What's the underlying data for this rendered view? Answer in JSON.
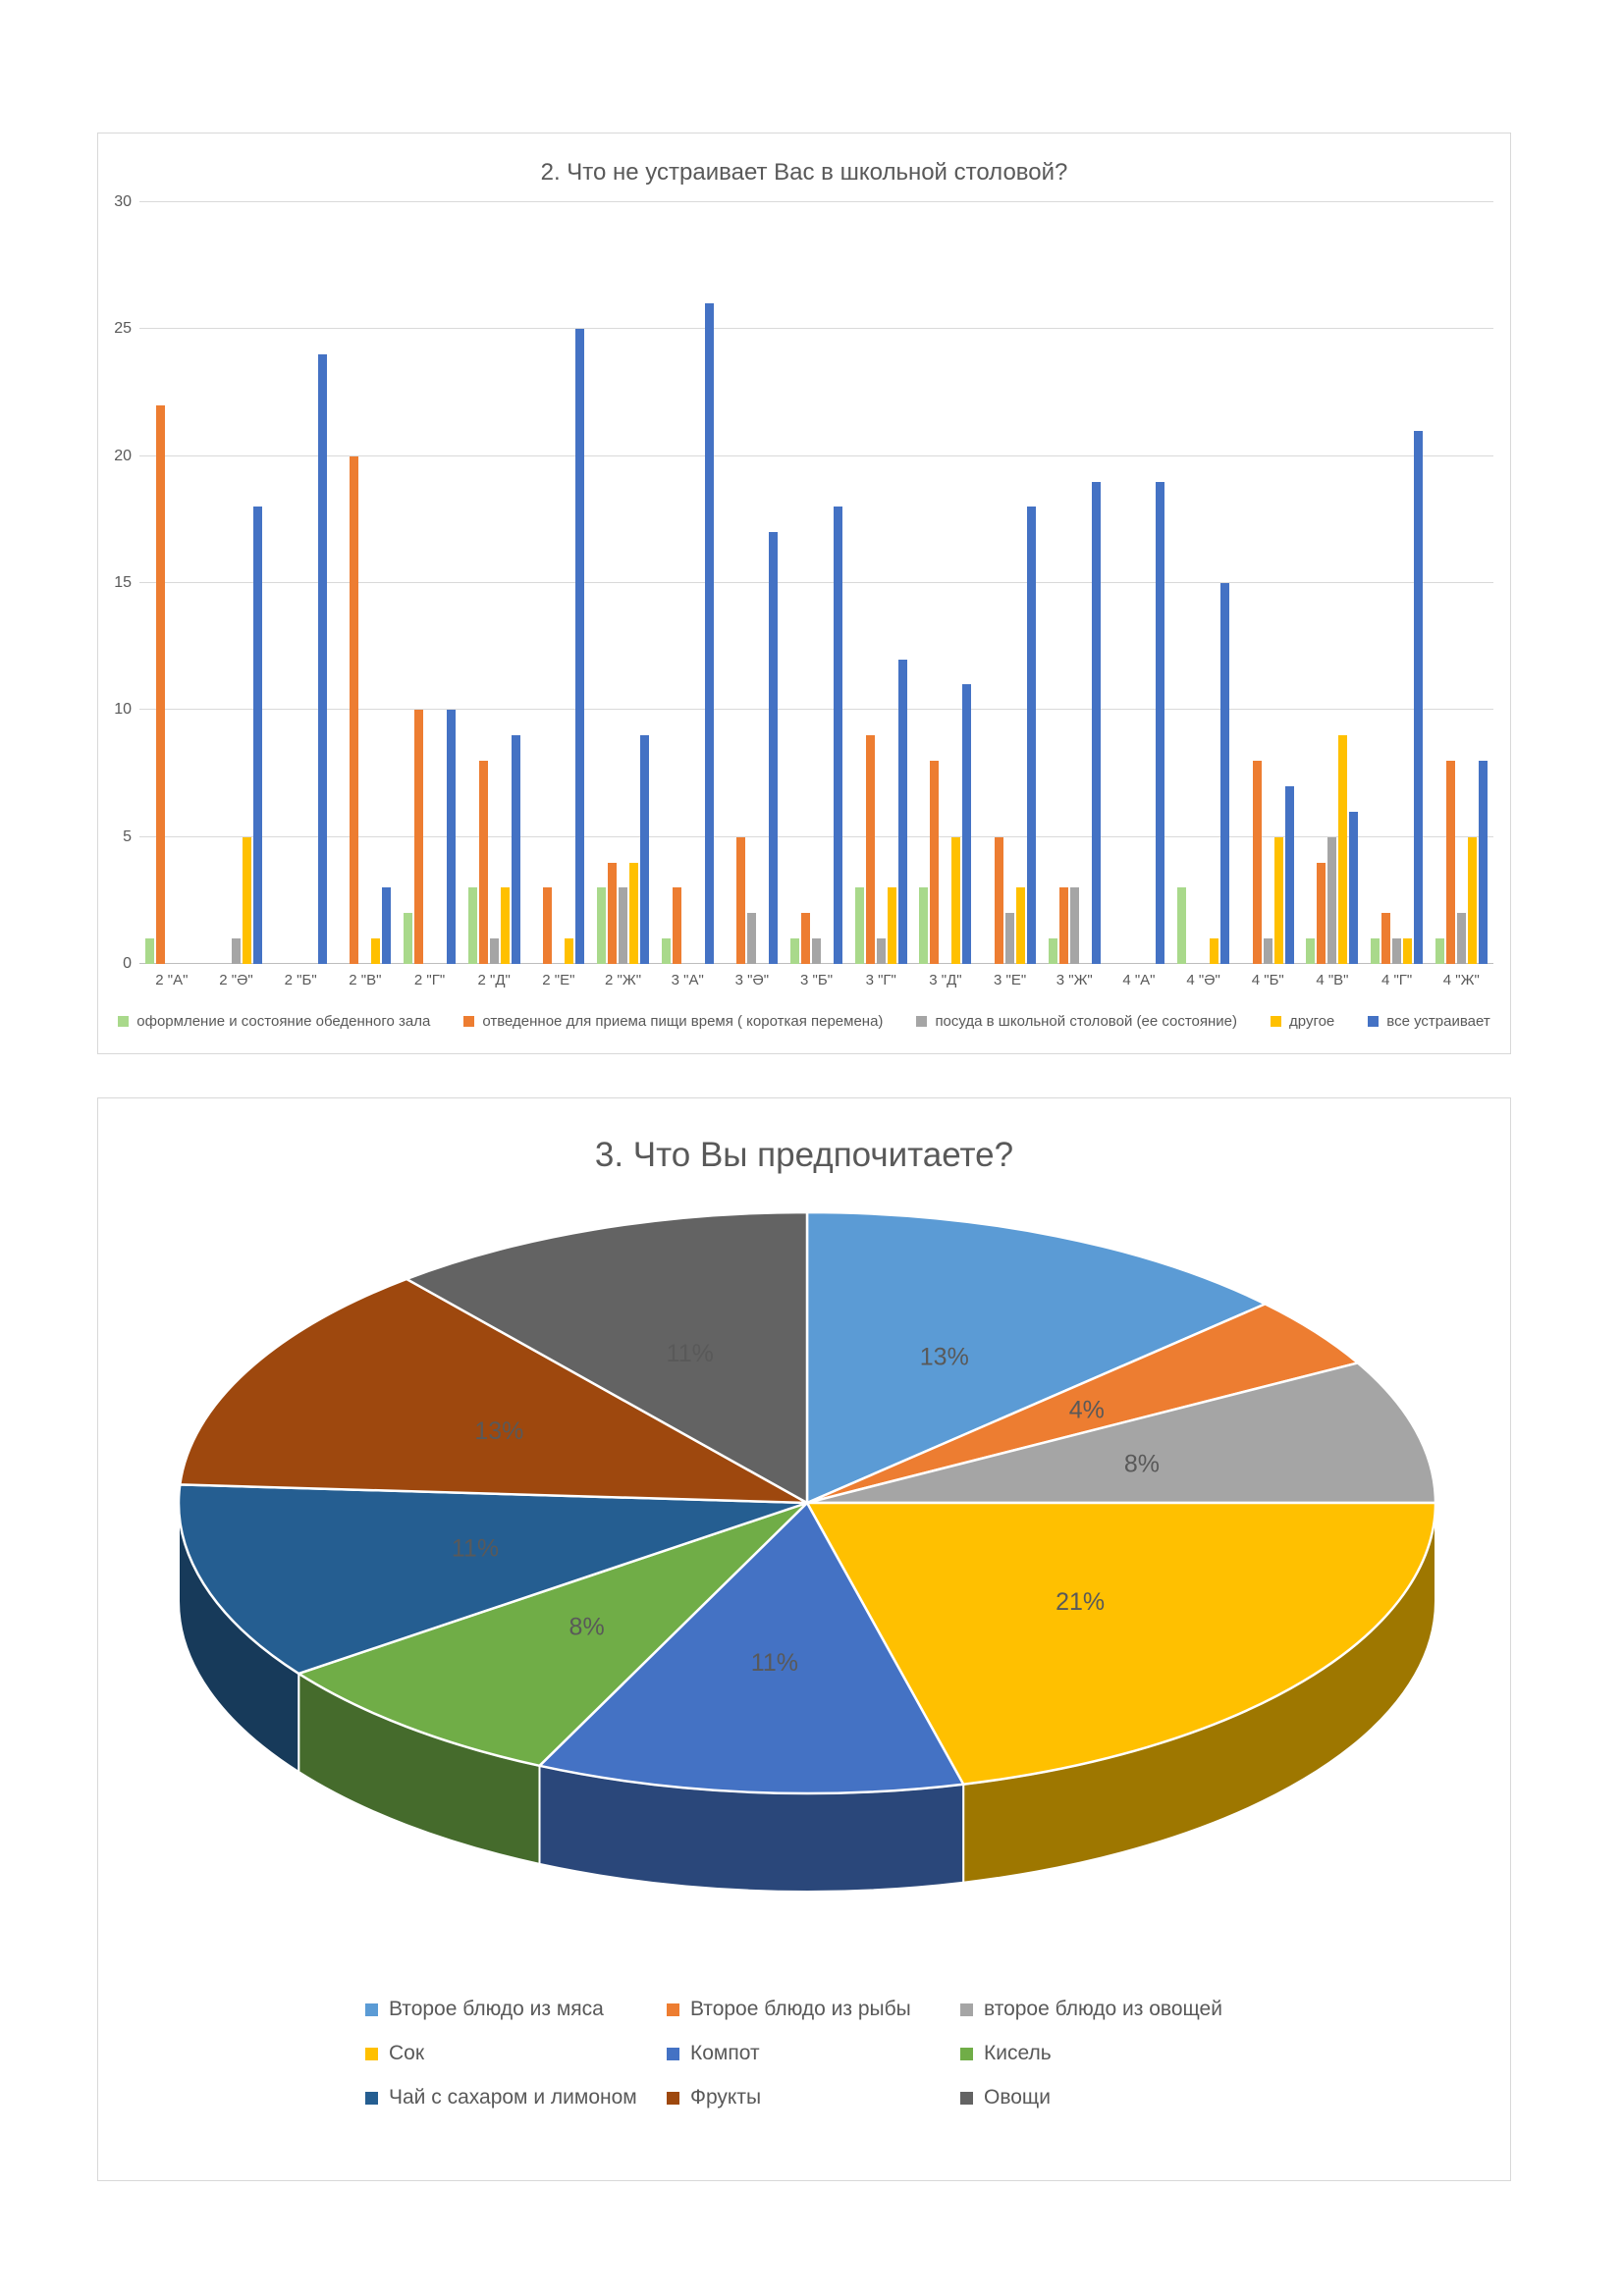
{
  "bar_chart": {
    "title": "2. Что не устраивает Вас в школьной столовой?",
    "chart_data": {
      "type": "bar",
      "title": "2. Что не устраивает Вас в школьной столовой?",
      "ylim": [
        0,
        30
      ],
      "yticks": [
        0,
        5,
        10,
        15,
        20,
        25,
        30
      ],
      "grid": true,
      "legend_position": "bottom",
      "categories": [
        "2 \"А\"",
        "2 \"Ә\"",
        "2 \"Б\"",
        "2 \"В\"",
        "2 \"Г\"",
        "2 \"Д\"",
        "2 \"Е\"",
        "2 \"Ж\"",
        "3 \"А\"",
        "3 \"Ә\"",
        "3 \"Б\"",
        "3 \"Г\"",
        "3 \"Д\"",
        "3 \"Е\"",
        "3 \"Ж\"",
        "4 \"А\"",
        "4 \"Ә\"",
        "4 \"Б\"",
        "4 \"В\"",
        "4 \"Г\"",
        "4 \"Ж\""
      ],
      "series": [
        {
          "name": "оформление и состояние обеденного зала",
          "color": "#a9d98b",
          "values": [
            1,
            0,
            0,
            0,
            2,
            3,
            0,
            3,
            1,
            0,
            1,
            3,
            3,
            0,
            1,
            0,
            3,
            0,
            1,
            1,
            1
          ]
        },
        {
          "name": "отведенное для приема пищи время ( короткая перемена)",
          "color": "#ED7D31",
          "values": [
            22,
            0,
            0,
            20,
            10,
            8,
            3,
            4,
            3,
            5,
            2,
            9,
            8,
            5,
            3,
            0,
            0,
            8,
            4,
            2,
            8
          ]
        },
        {
          "name": "посуда в школьной столовой (ее состояние)",
          "color": "#A5A5A5",
          "values": [
            0,
            1,
            0,
            0,
            0,
            1,
            0,
            3,
            0,
            2,
            1,
            1,
            0,
            2,
            3,
            0,
            0,
            1,
            5,
            1,
            2
          ]
        },
        {
          "name": "другое",
          "color": "#FFC000",
          "values": [
            0,
            5,
            0,
            1,
            0,
            3,
            1,
            4,
            0,
            0,
            0,
            3,
            5,
            3,
            0,
            0,
            1,
            5,
            9,
            1,
            5
          ]
        },
        {
          "name": "все устраивает",
          "color": "#4472C4",
          "values": [
            0,
            18,
            24,
            3,
            10,
            9,
            25,
            9,
            26,
            17,
            18,
            12,
            11,
            18,
            19,
            19,
            15,
            7,
            6,
            21,
            8
          ]
        }
      ]
    }
  },
  "pie_chart": {
    "title": "3. Что Вы предпочитаете?",
    "chart_data": {
      "type": "pie",
      "title": "3. Что Вы предпочитаете?",
      "effect": "3d",
      "start_angle_deg_from_top": 0,
      "direction": "clockwise",
      "label_format": "percent",
      "legend_position": "bottom",
      "slices": [
        {
          "label": "Второе блюдо из мяса",
          "value": 13,
          "color": "#5B9BD5"
        },
        {
          "label": "Второе блюдо из рыбы",
          "value": 4,
          "color": "#ED7D31"
        },
        {
          "label": "второе блюдо из овощей",
          "value": 8,
          "color": "#A5A5A5"
        },
        {
          "label": "Сок",
          "value": 21,
          "color": "#FFC000"
        },
        {
          "label": "Компот",
          "value": 11,
          "color": "#4472C4"
        },
        {
          "label": "Кисель",
          "value": 8,
          "color": "#70AD47"
        },
        {
          "label": "Чай с сахаром и лимоном",
          "value": 11,
          "color": "#255E91"
        },
        {
          "label": "Фрукты",
          "value": 13,
          "color": "#9E480E"
        },
        {
          "label": "Овощи",
          "value": 11,
          "color": "#636363"
        }
      ]
    },
    "colors": {
      "label_text": "#595959"
    }
  }
}
